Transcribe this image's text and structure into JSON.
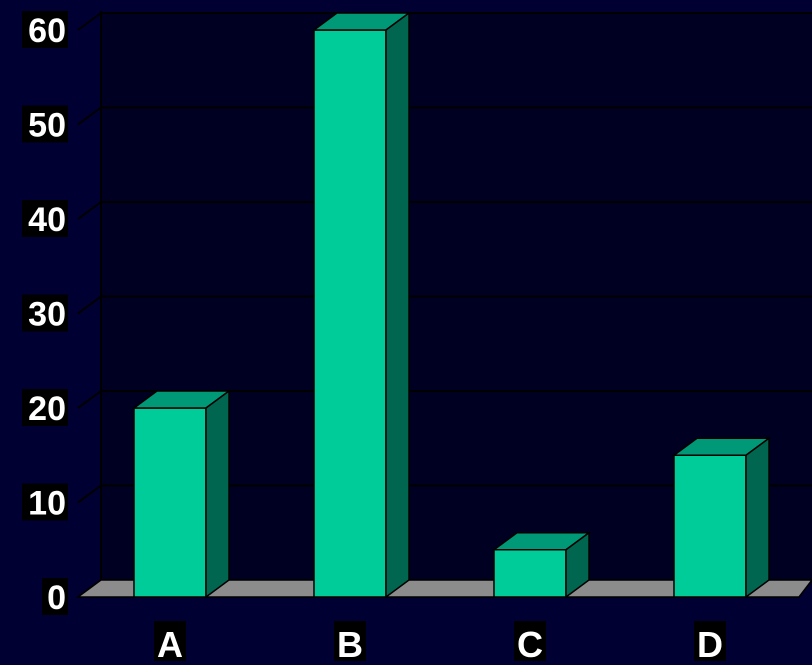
{
  "chart_data": {
    "type": "bar",
    "style": "3d",
    "categories": [
      "A",
      "B",
      "C",
      "D"
    ],
    "values": [
      20,
      60,
      5,
      15
    ],
    "title": "",
    "xlabel": "",
    "ylabel": "",
    "ylim": [
      0,
      60
    ],
    "yticks": [
      "0",
      "10",
      "20",
      "30",
      "40",
      "50",
      "60"
    ],
    "grid": true,
    "legend": "none",
    "colors": {
      "background": "#000033",
      "plot_area": "#000022",
      "bar_front": "#00cc99",
      "bar_top": "#009977",
      "bar_side": "#006650",
      "floor": "#8c8c8c",
      "gridline": "#000000",
      "text": "#ffffff"
    }
  }
}
